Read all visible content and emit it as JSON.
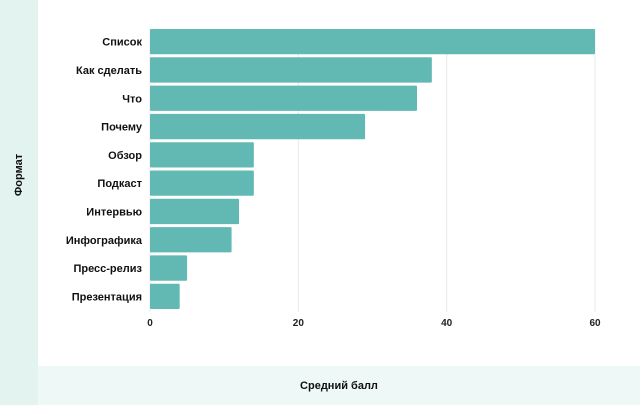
{
  "chart_data": {
    "type": "bar",
    "orientation": "horizontal",
    "categories": [
      "Список",
      "Как сделать",
      "Что",
      "Почему",
      "Обзор",
      "Подкаст",
      "Интервью",
      "Инфографика",
      "Пресс-релиз",
      "Презентация"
    ],
    "values": [
      60,
      38,
      36,
      29,
      14,
      14,
      12,
      11,
      5,
      4
    ],
    "xlabel": "Средний балл",
    "ylabel": "Формат",
    "xlim": [
      0,
      60
    ],
    "xticks": [
      0,
      20,
      40,
      60
    ],
    "grid": true,
    "bar_color": "#62b8b3",
    "band_color": "#e2f3f0"
  }
}
